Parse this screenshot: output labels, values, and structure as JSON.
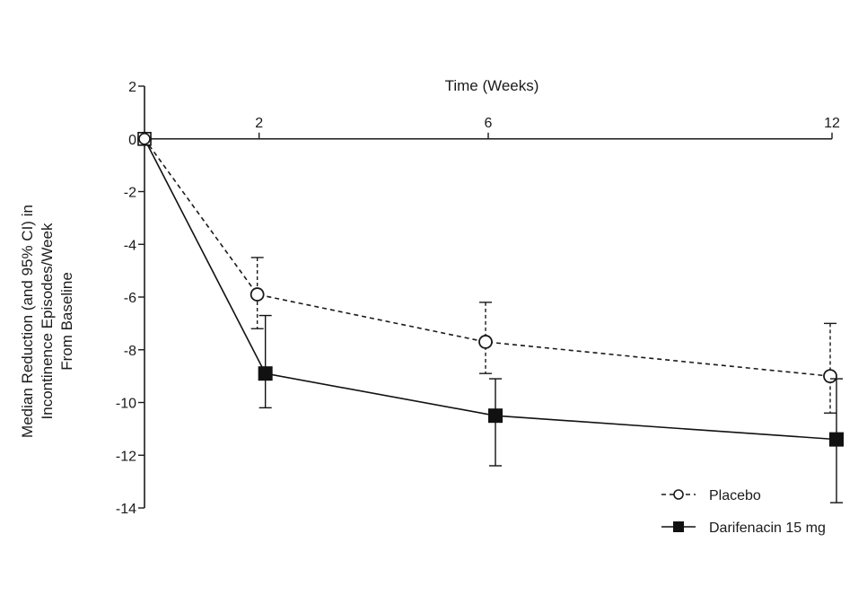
{
  "chart_data": {
    "type": "line",
    "xlabel": "Time (Weeks)",
    "ylabel_lines": [
      "Median Reduction (and 95% CI) in",
      "Incontinence Episodes/Week",
      "From Baseline"
    ],
    "x": [
      0,
      2,
      6,
      12
    ],
    "x_tick_labels": [
      "2",
      "6",
      "12"
    ],
    "x_tick_values": [
      2,
      6,
      12
    ],
    "xlim": [
      0,
      12
    ],
    "ylim": [
      -14,
      2
    ],
    "y_ticks": [
      2,
      0,
      -2,
      -4,
      -6,
      -8,
      -10,
      -12,
      -14
    ],
    "grid": false,
    "legend_position": "bottom-right",
    "series": [
      {
        "name": "Placebo",
        "style": "dashed",
        "marker": "open-circle",
        "values": [
          0,
          -5.9,
          -7.7,
          -9.0
        ],
        "ci_low": [
          0,
          -7.2,
          -8.9,
          -10.4
        ],
        "ci_high": [
          0,
          -4.5,
          -6.2,
          -7.0
        ]
      },
      {
        "name": "Darifenacin 15 mg",
        "style": "solid",
        "marker": "filled-square",
        "values": [
          0,
          -8.9,
          -10.5,
          -11.4
        ],
        "ci_low": [
          0,
          -10.2,
          -12.4,
          -13.8
        ],
        "ci_high": [
          0,
          -6.7,
          -9.1,
          -9.1
        ]
      }
    ],
    "colors": {
      "axis": "#1a1a1a",
      "placebo": "#1a1a1a",
      "darifenacin": "#111111"
    }
  }
}
